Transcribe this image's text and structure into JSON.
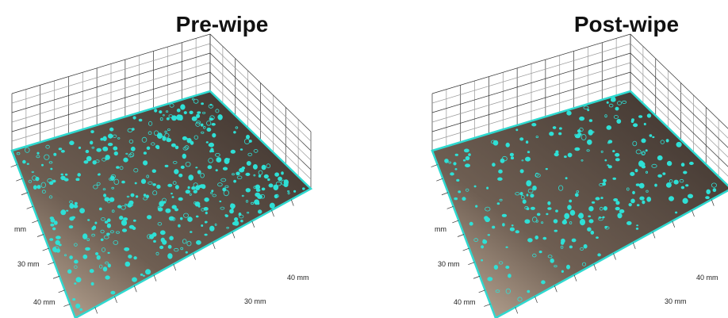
{
  "panels": [
    {
      "title": "Pre-wipe",
      "axis_labels": {
        "left": [
          "mm",
          "30 mm",
          "40 mm"
        ],
        "right": [
          "40 mm",
          "30 mm"
        ]
      }
    },
    {
      "title": "Post-wipe",
      "axis_labels": {
        "left": [
          "mm",
          "30 mm",
          "40 mm"
        ],
        "right": [
          "40 mm",
          "30 mm"
        ]
      }
    }
  ]
}
